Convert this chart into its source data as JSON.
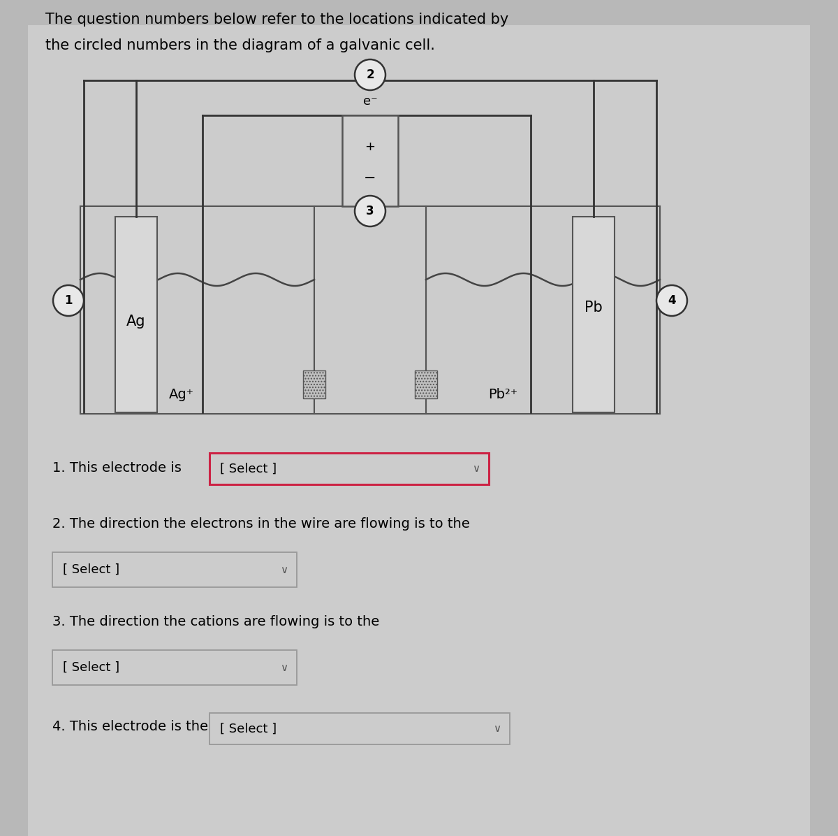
{
  "title_line1": "The question numbers below refer to the locations indicated by",
  "title_line2": "the circled numbers in the diagram of a galvanic cell.",
  "bg_color": "#b8b8b8",
  "panel_bg": "#c8c8c8",
  "box_border": "#555555",
  "electrode_left_label": "Ag",
  "electrode_right_label": "Pb",
  "solution_left_label": "Ag⁺",
  "solution_right_label": "Pb²⁺",
  "circle_color": "#e8e8e8",
  "circle_border": "#333333",
  "wire_color": "#333333",
  "battery_plus": "+",
  "battery_minus": "−",
  "electron_label": "e⁻",
  "q1_text": "1. This electrode is",
  "q2_text": "2. The direction the electrons in the wire are flowing is to the",
  "q3_text": "3. The direction the cations are flowing is to the",
  "q4_text": "4. This electrode is the",
  "select_text": "[ Select ]",
  "select_border_q1": "#cc2244",
  "select_border_default": "#999999",
  "font_size_title": 15,
  "font_size_labels": 14,
  "font_size_questions": 14
}
